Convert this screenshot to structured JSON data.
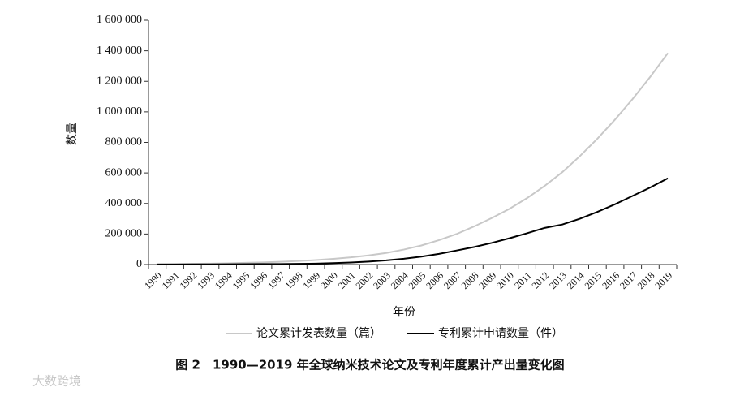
{
  "chart_data": {
    "type": "line",
    "categories": [
      "1990",
      "1991",
      "1992",
      "1993",
      "1994",
      "1995",
      "1996",
      "1997",
      "1998",
      "1999",
      "2000",
      "2001",
      "2002",
      "2003",
      "2004",
      "2005",
      "2006",
      "2007",
      "2008",
      "2009",
      "2010",
      "2011",
      "2012",
      "2013",
      "2014",
      "2015",
      "2016",
      "2017",
      "2018",
      "2019"
    ],
    "series": [
      {
        "name": "论文累计发表数量（篇）",
        "color": "#c8c8c8",
        "values": [
          2000,
          3000,
          4500,
          6000,
          8000,
          11000,
          14000,
          18000,
          23000,
          29000,
          37000,
          47000,
          60000,
          76000,
          98000,
          125000,
          160000,
          200000,
          250000,
          305000,
          365000,
          435000,
          515000,
          605000,
          710000,
          825000,
          950000,
          1085000,
          1230000,
          1385000
        ]
      },
      {
        "name": "专利累计申请数量（件）",
        "color": "#000000",
        "values": [
          500,
          800,
          1200,
          1600,
          2000,
          2500,
          3000,
          3500,
          4500,
          6000,
          9000,
          13000,
          19000,
          27000,
          38000,
          52000,
          70000,
          92000,
          115000,
          142000,
          172000,
          205000,
          240000,
          262000,
          300000,
          345000,
          395000,
          450000,
          505000,
          565000
        ]
      }
    ],
    "ylim": [
      0,
      1600000
    ],
    "yticks": [
      0,
      {
        "value": 200000,
        "label": "200 000"
      },
      {
        "value": 400000,
        "label": "400 000"
      },
      {
        "value": 600000,
        "label": "600 000"
      },
      {
        "value": 800000,
        "label": "800 000"
      },
      {
        "value": 1000000,
        "label": "1 000 000"
      },
      {
        "value": 1200000,
        "label": "1 200 000"
      },
      {
        "value": 1400000,
        "label": "1 400 000"
      },
      {
        "value": 1600000,
        "label": "1 600 000"
      }
    ],
    "ylabel": "数量",
    "xlabel": "年份",
    "caption": "图 2　1990—2019 年全球纳米技术论文及专利年度累计产出量变化图",
    "watermark": "大数跨境"
  }
}
